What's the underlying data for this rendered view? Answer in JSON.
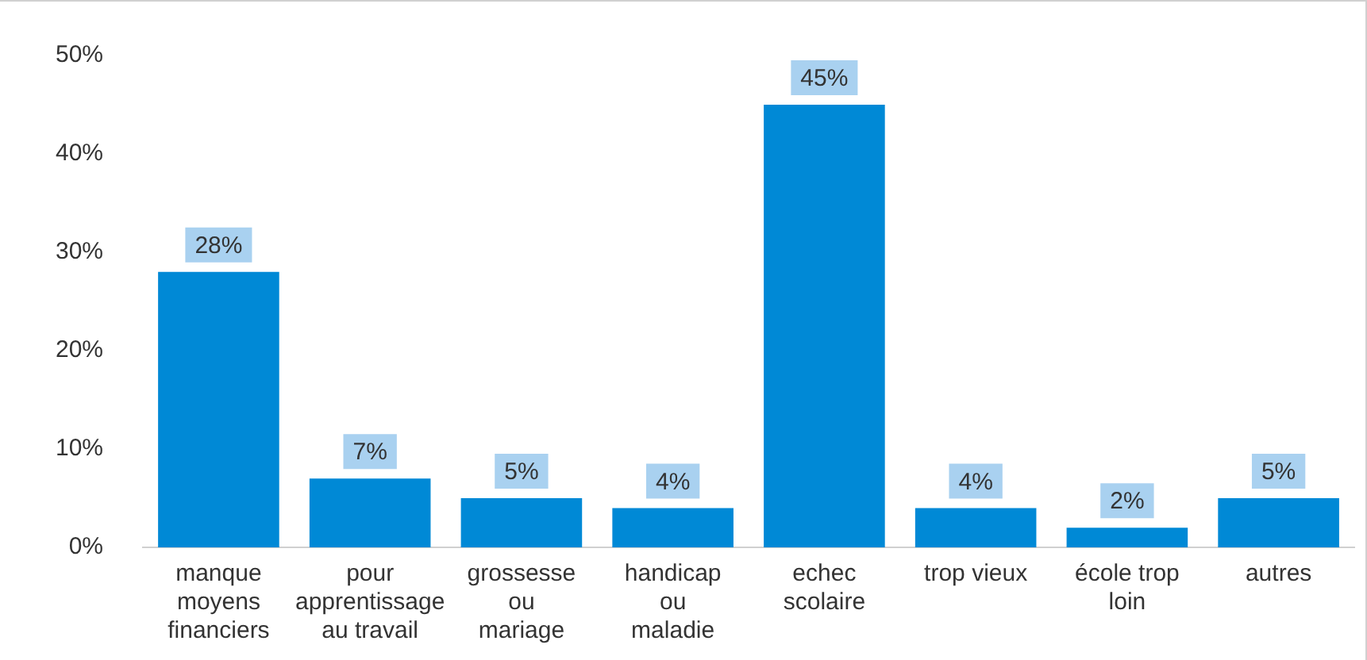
{
  "chart_data": {
    "type": "bar",
    "categories": [
      "manque\nmoyens\nfinanciers",
      "pour\napprentissage\nau travail",
      "grossesse\nou\nmariage",
      "handicap\nou\nmaladie",
      "echec\nscolaire",
      "trop vieux",
      "école trop\nloin",
      "autres"
    ],
    "values": [
      28,
      7,
      5,
      4,
      45,
      4,
      2,
      5
    ],
    "color": "#0089d6",
    "ylim": [
      0,
      50
    ],
    "yticks": [
      {
        "value": 0,
        "label": "0%"
      },
      {
        "value": 10,
        "label": "10%"
      },
      {
        "value": 20,
        "label": "20%"
      },
      {
        "value": 30,
        "label": "30%"
      },
      {
        "value": 40,
        "label": "40%"
      },
      {
        "value": 50,
        "label": "50%"
      }
    ],
    "value_labels": [
      "28%",
      "7%",
      "5%",
      "4%",
      "45%",
      "4%",
      "2%",
      "5%"
    ],
    "grid": false,
    "legend": false
  }
}
